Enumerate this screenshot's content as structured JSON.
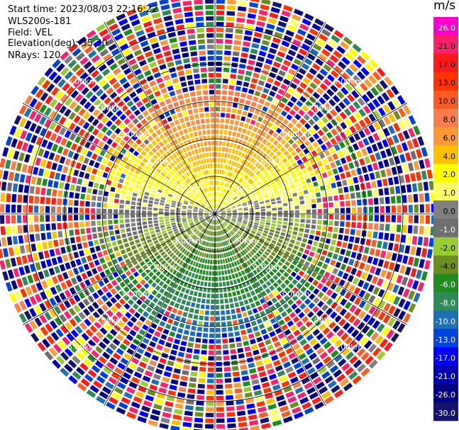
{
  "header": {
    "start_time": "Start time: 2023/08/03 22:16:22",
    "station": "WLS200s-181",
    "field": "Field: VEL",
    "elevation": "Elevation(deg): 35.30",
    "nrays": "NRays: 120"
  },
  "colorbar": {
    "unit": "m/s",
    "ticks": [
      "26.0",
      "21.0",
      "17.0",
      "13.0",
      "10.0",
      "8.0",
      "6.0",
      "4.0",
      "2.0",
      "1.0",
      "0.0",
      "-1.0",
      "-2.0",
      "-4.0",
      "-6.0",
      "-8.0",
      "-10.0",
      "-13.0",
      "-17.0",
      "-21.0",
      "-26.0",
      "-30.0"
    ],
    "colors": [
      "#ff00cc",
      "#ff1f6b",
      "#ff1a1a",
      "#ff3300",
      "#ff5a24",
      "#ff7d4a",
      "#ff9933",
      "#ffc000",
      "#ffff00",
      "#ffff66",
      "#808080",
      "#6e6e6e",
      "#99cc33",
      "#6b8e23",
      "#1e8c1e",
      "#2e8b57",
      "#1e6fb5",
      "#0044dd",
      "#0000ff",
      "#0000b0",
      "#000080",
      "#141470"
    ],
    "tick_text_colors": [
      "#ffffff",
      "#000000",
      "#000000",
      "#000000",
      "#000000",
      "#000000",
      "#000000",
      "#000000",
      "#000000",
      "#000000",
      "#000000",
      "#ffffff",
      "#000000",
      "#000000",
      "#ffffff",
      "#ffffff",
      "#ffffff",
      "#ffffff",
      "#ffffff",
      "#ffffff",
      "#ffffff",
      "#ffffff"
    ]
  },
  "chart_data": {
    "type": "ppi",
    "field": "VEL",
    "nrays": 120,
    "range_rings_km": [
      1.0,
      2.0,
      3.0,
      4.0,
      5.0
    ],
    "ring_labels": {
      "1": "1.00km",
      "2": "2.00km",
      "3": "3.00km",
      "4": "4.00km",
      "5": "5.00km"
    },
    "spokes_deg": [
      0,
      30,
      60,
      90,
      120,
      150,
      180,
      210,
      240,
      270,
      300,
      330
    ],
    "max_range_km": 5.9,
    "velocity_pattern": {
      "north_sector": "positive (receding) 2 to 10 m/s",
      "south_sector": "negative (approaching) -1 to -6 m/s",
      "east_west": "near zero",
      "outer_ranges_beyond_km": 3.3,
      "outer_ranges": "noise, all classes"
    }
  }
}
